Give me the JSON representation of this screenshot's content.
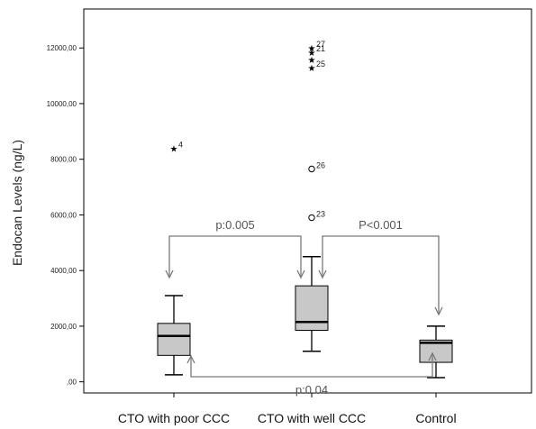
{
  "chart_data": {
    "type": "boxplot",
    "ylabel": "Endocan Levels (ng/L)",
    "ylim": [
      -400,
      13400
    ],
    "yticks": [
      0,
      2000,
      4000,
      6000,
      8000,
      10000,
      12000
    ],
    "ytick_labels": [
      ",00",
      "2000,00",
      "4000,00",
      "6000,00",
      "8000,00",
      "10000,00",
      "12000,00"
    ],
    "categories": [
      "CTO with poor CCC",
      "CTO with well CCC",
      "Control"
    ],
    "boxes": [
      {
        "category": "CTO with poor CCC",
        "whisker_low": 250,
        "q1": 950,
        "median": 1650,
        "q3": 2100,
        "whisker_high": 3100
      },
      {
        "category": "CTO with well CCC",
        "whisker_low": 1100,
        "q1": 1850,
        "median": 2150,
        "q3": 3450,
        "whisker_high": 4500
      },
      {
        "category": "Control",
        "whisker_low": 150,
        "q1": 700,
        "median": 1400,
        "q3": 1500,
        "whisker_high": 2000
      }
    ],
    "outliers": [
      {
        "category": "CTO with poor CCC",
        "value": 8400,
        "marker": "star",
        "label": "4"
      },
      {
        "category": "CTO with well CCC",
        "value": 12000,
        "marker": "star",
        "label": "27"
      },
      {
        "category": "CTO with well CCC",
        "value": 11850,
        "marker": "star",
        "label": "21"
      },
      {
        "category": "CTO with well CCC",
        "value": 11580,
        "marker": "star",
        "label": ""
      },
      {
        "category": "CTO with well CCC",
        "value": 11300,
        "marker": "star",
        "label": "25"
      },
      {
        "category": "CTO with well CCC",
        "value": 7650,
        "marker": "circle",
        "label": "26"
      },
      {
        "category": "CTO with well CCC",
        "value": 5900,
        "marker": "circle",
        "label": "23"
      }
    ],
    "comparisons": [
      {
        "from": "CTO with poor CCC",
        "to": "CTO with well CCC",
        "label": "p:0.005",
        "position": "above"
      },
      {
        "from": "CTO with well CCC",
        "to": "Control",
        "label": "P<0.001",
        "position": "above"
      },
      {
        "from": "CTO with poor CCC",
        "to": "Control",
        "label": "p:0.04",
        "position": "below"
      }
    ],
    "colors": {
      "box_fill": "#c8c8c8",
      "line": "#000000",
      "annotation": "#7a7a7a"
    }
  }
}
